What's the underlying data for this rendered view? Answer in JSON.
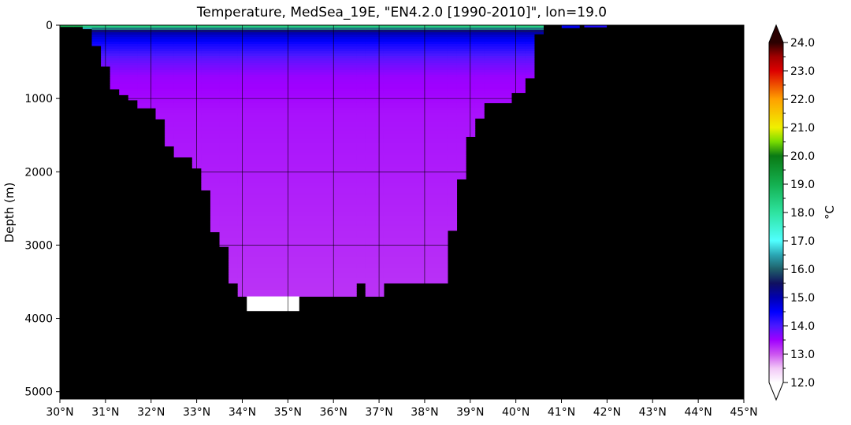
{
  "chart_data": {
    "type": "heatmap",
    "title": "Temperature, MedSea_19E, \"EN4.2.0 [1990-2010]\", lon=19.0",
    "ylabel": "Depth (m)",
    "xlim": [
      30,
      45
    ],
    "ylim": [
      5100,
      0
    ],
    "x_ticks": [
      30,
      31,
      32,
      33,
      34,
      35,
      36,
      37,
      38,
      39,
      40,
      41,
      42,
      43,
      44,
      45
    ],
    "x_tick_labels": [
      "30°N",
      "31°N",
      "32°N",
      "33°N",
      "34°N",
      "35°N",
      "36°N",
      "37°N",
      "38°N",
      "39°N",
      "40°N",
      "41°N",
      "42°N",
      "43°N",
      "44°N",
      "45°N"
    ],
    "y_ticks": [
      0,
      1000,
      2000,
      3000,
      4000,
      5000
    ],
    "y_tick_labels": [
      "0",
      "1000",
      "2000",
      "3000",
      "4000",
      "5000"
    ],
    "grid": true,
    "land_color": "#000000",
    "missing_color": "#ffffff",
    "colorbar": {
      "label": "°C",
      "min": 12.0,
      "max": 24.0,
      "extend": "both",
      "ticks": [
        12,
        13,
        14,
        15,
        16,
        17,
        18,
        19,
        20,
        21,
        22,
        23,
        24
      ],
      "tick_labels": [
        "12.0",
        "13.0",
        "14.0",
        "15.0",
        "16.0",
        "17.0",
        "18.0",
        "19.0",
        "20.0",
        "21.0",
        "22.0",
        "23.0",
        "24.0"
      ],
      "color_stops": [
        {
          "value": 12.0,
          "color": "#ffffff"
        },
        {
          "value": 12.5,
          "color": "#f2c8f7"
        },
        {
          "value": 13.0,
          "color": "#cc55f0"
        },
        {
          "value": 13.5,
          "color": "#a000ff"
        },
        {
          "value": 14.0,
          "color": "#4a18ff"
        },
        {
          "value": 14.5,
          "color": "#0000ff"
        },
        {
          "value": 15.0,
          "color": "#0000b0"
        },
        {
          "value": 15.5,
          "color": "#101060"
        },
        {
          "value": 16.0,
          "color": "#1f5f6a"
        },
        {
          "value": 16.5,
          "color": "#2aa6b3"
        },
        {
          "value": 17.0,
          "color": "#50ffff"
        },
        {
          "value": 18.0,
          "color": "#2ee3a0"
        },
        {
          "value": 19.0,
          "color": "#14b050"
        },
        {
          "value": 20.0,
          "color": "#0a7a14"
        },
        {
          "value": 20.5,
          "color": "#78dc00"
        },
        {
          "value": 21.0,
          "color": "#f0f000"
        },
        {
          "value": 22.0,
          "color": "#ffa000"
        },
        {
          "value": 23.0,
          "color": "#dd0000"
        },
        {
          "value": 23.5,
          "color": "#a00000"
        },
        {
          "value": 24.0,
          "color": "#2a0000"
        }
      ]
    },
    "ocean_section": {
      "bottom_depth_profile": [
        {
          "lat": 30.0,
          "depth": 0
        },
        {
          "lat": 30.3,
          "depth": 20
        },
        {
          "lat": 30.5,
          "depth": 50
        },
        {
          "lat": 30.7,
          "depth": 280
        },
        {
          "lat": 30.9,
          "depth": 560
        },
        {
          "lat": 31.1,
          "depth": 870
        },
        {
          "lat": 31.3,
          "depth": 950
        },
        {
          "lat": 31.5,
          "depth": 1020
        },
        {
          "lat": 31.7,
          "depth": 1130
        },
        {
          "lat": 32.1,
          "depth": 1280
        },
        {
          "lat": 32.3,
          "depth": 1650
        },
        {
          "lat": 32.5,
          "depth": 1800
        },
        {
          "lat": 32.9,
          "depth": 1950
        },
        {
          "lat": 33.1,
          "depth": 2250
        },
        {
          "lat": 33.3,
          "depth": 2820
        },
        {
          "lat": 33.5,
          "depth": 3020
        },
        {
          "lat": 33.7,
          "depth": 3520
        },
        {
          "lat": 33.9,
          "depth": 3700
        },
        {
          "lat": 36.5,
          "depth": 3520
        },
        {
          "lat": 36.7,
          "depth": 3700
        },
        {
          "lat": 37.1,
          "depth": 3520
        },
        {
          "lat": 38.5,
          "depth": 2800
        },
        {
          "lat": 38.7,
          "depth": 2100
        },
        {
          "lat": 38.9,
          "depth": 1520
        },
        {
          "lat": 39.1,
          "depth": 1270
        },
        {
          "lat": 39.3,
          "depth": 1060
        },
        {
          "lat": 39.9,
          "depth": 920
        },
        {
          "lat": 40.2,
          "depth": 720
        },
        {
          "lat": 40.4,
          "depth": 120
        },
        {
          "lat": 40.6,
          "depth": 0
        }
      ],
      "missing_patch": {
        "lat_from": 34.1,
        "lat_to": 35.25,
        "depth_from": 3700,
        "depth_to": 3900
      },
      "north_shelf_patches": [
        {
          "lat_from": 41.0,
          "lat_to": 41.4,
          "depth_from": 0,
          "depth_to": 40,
          "temperature": 14.6
        },
        {
          "lat_from": 41.5,
          "lat_to": 42.0,
          "depth_from": 0,
          "depth_to": 30,
          "temperature": 14.3
        }
      ],
      "temperature_profile": [
        {
          "depth": 0,
          "temperature": 18.0
        },
        {
          "depth": 10,
          "temperature": 19.0
        },
        {
          "depth": 30,
          "temperature": 17.0
        },
        {
          "depth": 60,
          "temperature": 15.6
        },
        {
          "depth": 120,
          "temperature": 14.9
        },
        {
          "depth": 250,
          "temperature": 14.4
        },
        {
          "depth": 450,
          "temperature": 13.9
        },
        {
          "depth": 700,
          "temperature": 13.55
        },
        {
          "depth": 1200,
          "temperature": 13.4
        },
        {
          "depth": 2500,
          "temperature": 13.3
        },
        {
          "depth": 3700,
          "temperature": 13.2
        }
      ]
    }
  }
}
